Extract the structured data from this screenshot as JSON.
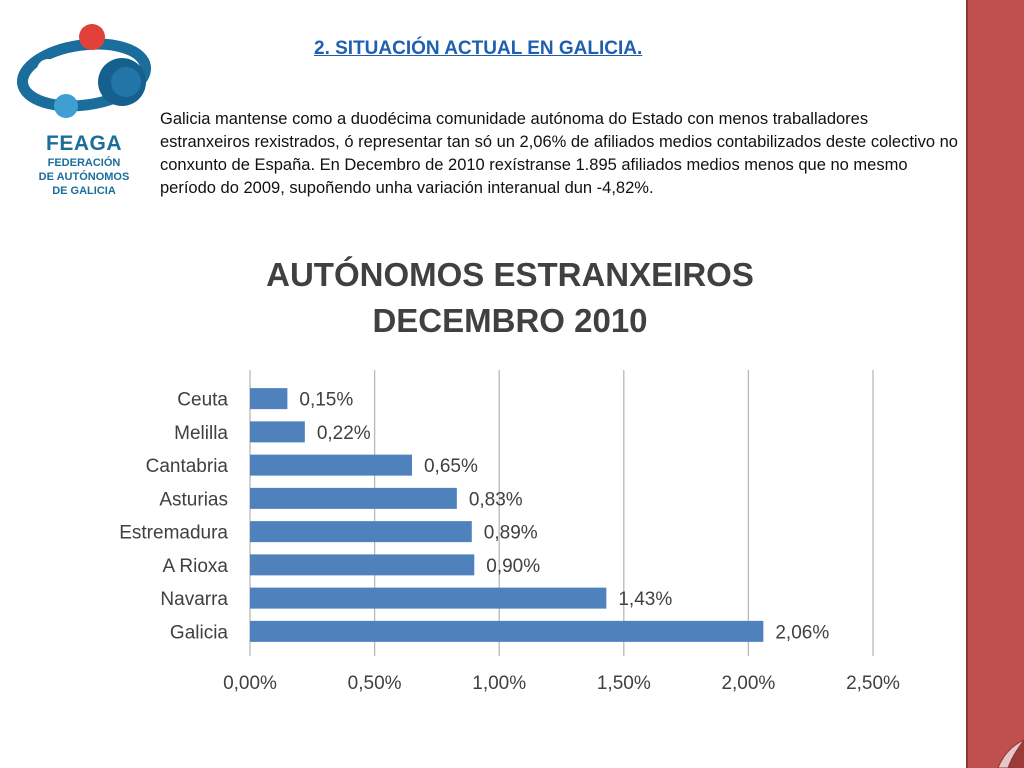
{
  "logo": {
    "name": "FEAGA",
    "subtitle_lines": [
      "FEDERACIÓN",
      "DE AUTÓNOMOS",
      "DE GALICIA"
    ],
    "colors": {
      "red": "#e2403a",
      "blue": "#1b6e9c",
      "light_blue": "#3f9fd3",
      "dark_blue": "#15608f"
    }
  },
  "slide": {
    "title": "2. SITUACIÓN ACTUAL EN GALICIA.",
    "intro": "Galicia mantense como a duodécima comunidade autónoma do Estado con menos traballadores  estranxeiros rexistrados, ó representar tan só un 2,06% de afiliados medios contabilizados deste colectivo no conxunto de España. En Decembro  de 2010 rexístranse 1.895 afiliados medios menos que no mesmo período do 2009, supoñendo unha variación interanual dun -4,82%.",
    "accent_color": "#c0504d"
  },
  "chart_data": {
    "type": "bar",
    "orientation": "horizontal",
    "title_lines": [
      "AUTÓNOMOS ESTRANXEIROS",
      "DECEMBRO 2010"
    ],
    "categories": [
      "Ceuta",
      "Melilla",
      "Cantabria",
      "Asturias",
      "Estremadura",
      "A Rioxa",
      "Navarra",
      "Galicia"
    ],
    "values": [
      0.15,
      0.22,
      0.65,
      0.83,
      0.89,
      0.9,
      1.43,
      2.06
    ],
    "value_labels": [
      "0,15%",
      "0,22%",
      "0,65%",
      "0,83%",
      "0,89%",
      "0,90%",
      "1,43%",
      "2,06%"
    ],
    "xlim": [
      0,
      2.5
    ],
    "x_ticks": [
      0,
      0.5,
      1.0,
      1.5,
      2.0,
      2.5
    ],
    "x_tick_labels": [
      "0,00%",
      "0,50%",
      "1,00%",
      "1,50%",
      "2,00%",
      "2,50%"
    ],
    "xlabel": "",
    "ylabel": "",
    "grid": "vertical",
    "bar_color": "#4f81bd",
    "legend": "none"
  }
}
